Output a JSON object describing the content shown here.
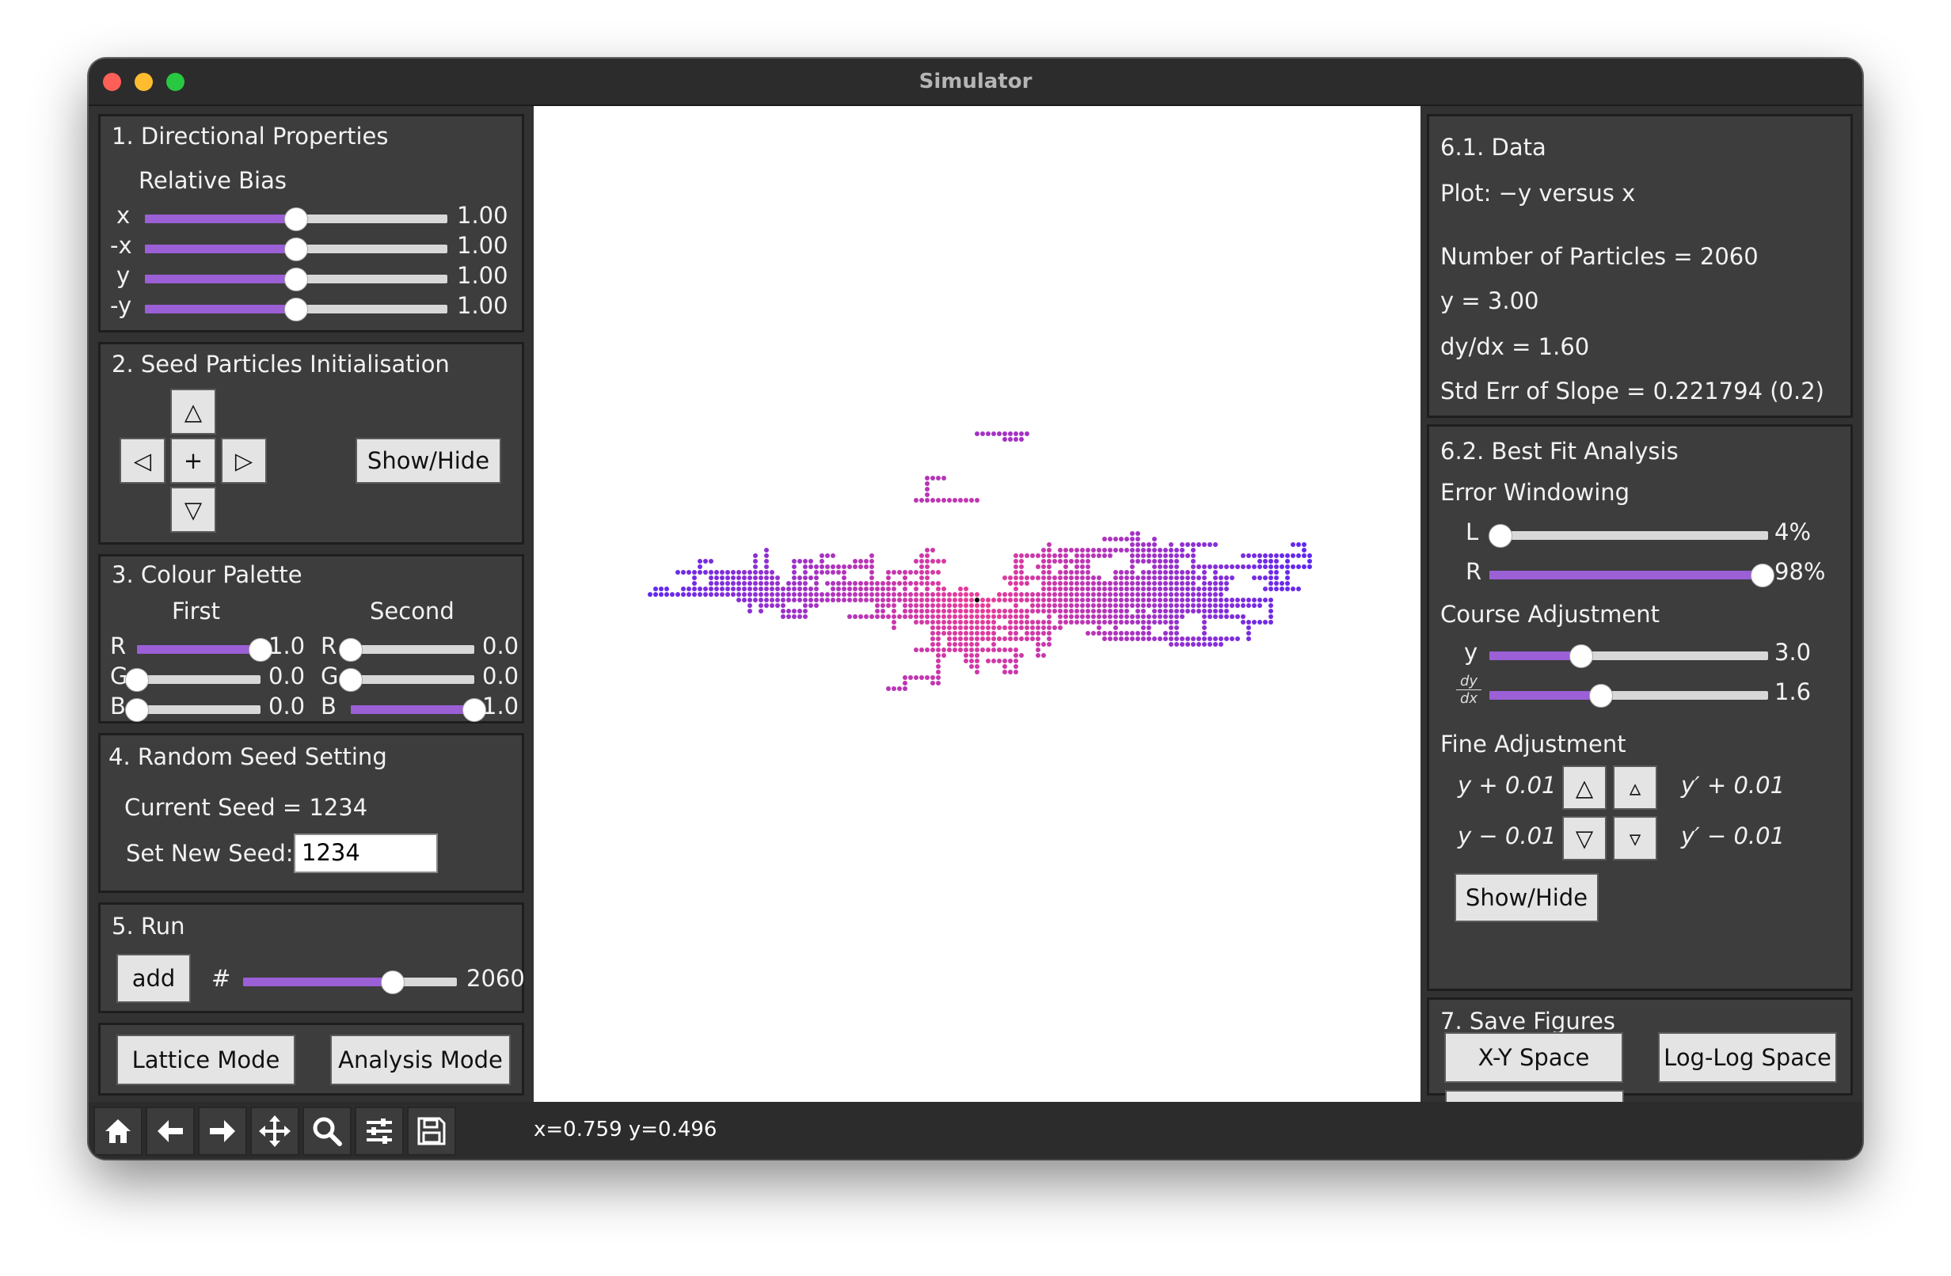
{
  "window": {
    "title": "Simulator"
  },
  "directional": {
    "title": "1. Directional Properties",
    "subtitle": "Relative Bias",
    "sliders": [
      {
        "label": "x",
        "value": "1.00",
        "fraction": 0.5
      },
      {
        "label": "-x",
        "value": "1.00",
        "fraction": 0.5
      },
      {
        "label": "y",
        "value": "1.00",
        "fraction": 0.5
      },
      {
        "label": "-y",
        "value": "1.00",
        "fraction": 0.5
      }
    ]
  },
  "seed_init": {
    "title": "2. Seed Particles Initialisation",
    "up": "△",
    "left": "◁",
    "center": "+",
    "right": "▷",
    "down": "▽",
    "show_hide": "Show/Hide"
  },
  "palette": {
    "title": "3. Colour Palette",
    "first_label": "First",
    "second_label": "Second",
    "first": [
      {
        "label": "R",
        "value": "1.0",
        "fraction": 1.0
      },
      {
        "label": "G",
        "value": "0.0",
        "fraction": 0.0
      },
      {
        "label": "B",
        "value": "0.0",
        "fraction": 0.0
      }
    ],
    "second": [
      {
        "label": "R",
        "value": "0.0",
        "fraction": 0.0
      },
      {
        "label": "G",
        "value": "0.0",
        "fraction": 0.0
      },
      {
        "label": "B",
        "value": "1.0",
        "fraction": 1.0
      }
    ]
  },
  "random_seed": {
    "title": "4. Random Seed Setting",
    "current": "Current Seed = 1234",
    "set_label": "Set New Seed:",
    "input_value": "1234"
  },
  "run": {
    "title": "5. Run",
    "add": "add",
    "hash": "#",
    "count": "2060",
    "fraction": 0.7
  },
  "modes": {
    "lattice": "Lattice Mode",
    "analysis": "Analysis Mode"
  },
  "data": {
    "title": "6.1. Data",
    "plot": "Plot: −y versus x",
    "particles": "Number of Particles = 2060",
    "y": "y = 3.00",
    "dydx": "dy/dx = 1.60",
    "stderr": "Std Err of Slope = 0.221794 (0.2)"
  },
  "bestfit": {
    "title": "6.2. Best Fit Analysis",
    "error_windowing": "Error Windowing",
    "L": {
      "label": "L",
      "value": "4%",
      "fraction": 0.04
    },
    "R": {
      "label": "R",
      "value": "98%",
      "fraction": 0.98
    },
    "course": "Course Adjustment",
    "y_course": {
      "label": "y",
      "value": "3.0",
      "fraction": 0.33
    },
    "dydx_course": {
      "num": "dy",
      "den": "dx",
      "value": "1.6",
      "fraction": 0.4
    },
    "fine": "Fine Adjustment",
    "y_plus": "y + 0.01",
    "y_minus": "y − 0.01",
    "yp_plus": "y′ + 0.01",
    "yp_minus": "y′ − 0.01",
    "up_big": "△",
    "up_small": "▵",
    "down_big": "▽",
    "down_small": "▿",
    "show_hide": "Show/Hide"
  },
  "save": {
    "title": "7. Save Figures",
    "xy": "X-Y Space",
    "loglog": "Log-Log Space"
  },
  "status": {
    "coords": "x=0.759 y=0.496"
  },
  "toolbar_icons": [
    "home-icon",
    "back-arrow-icon",
    "forward-arrow-icon",
    "pan-icon",
    "zoom-icon",
    "configure-icon",
    "save-icon"
  ]
}
